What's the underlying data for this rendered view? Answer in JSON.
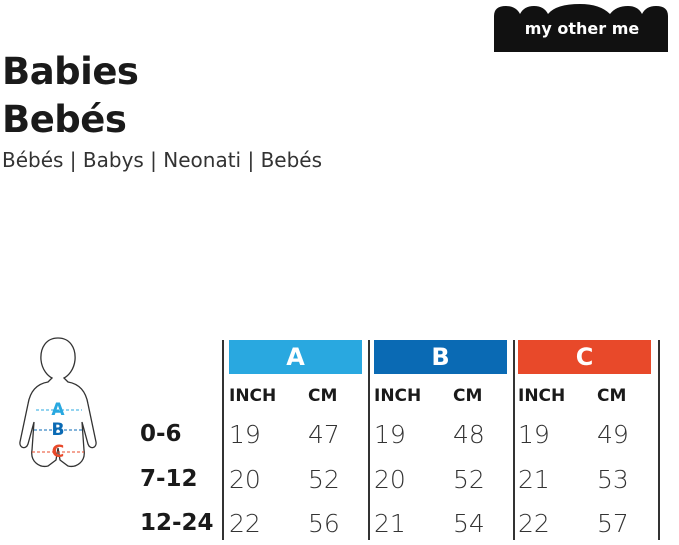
{
  "logo": {
    "text": "my other me"
  },
  "header": {
    "title": "Babies",
    "title_es": "Bebés",
    "subtitle": "Bébés | Babys | Neonati | Bebés"
  },
  "figure": {
    "labels": [
      "A",
      "B",
      "C"
    ]
  },
  "table": {
    "columns": [
      "A",
      "B",
      "C"
    ],
    "subheaders": [
      "INCH",
      "CM"
    ],
    "rows": [
      {
        "label": "0-6",
        "values": [
          19,
          47,
          19,
          48,
          19,
          49
        ]
      },
      {
        "label": "7-12",
        "values": [
          20,
          52,
          20,
          52,
          21,
          53
        ]
      },
      {
        "label": "12-24",
        "values": [
          22,
          56,
          21,
          54,
          22,
          57
        ]
      }
    ]
  }
}
